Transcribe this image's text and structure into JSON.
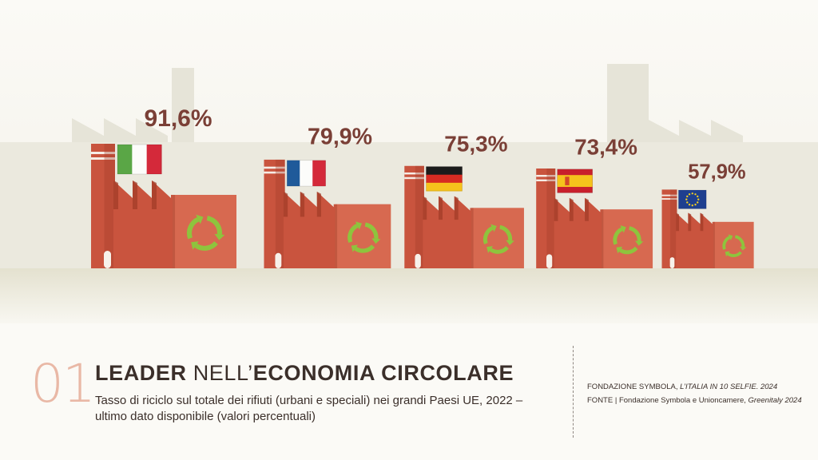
{
  "chart_data": {
    "type": "bar",
    "categories": [
      "Italia",
      "Francia",
      "Germania",
      "Spagna",
      "UE"
    ],
    "values": [
      91.6,
      79.9,
      75.3,
      73.4,
      57.9
    ],
    "value_labels": [
      "91,6%",
      "79,9%",
      "75,3%",
      "73,4%",
      "57,9%"
    ],
    "flags": [
      "italy-flag",
      "france-flag",
      "germany-flag",
      "spain-flag",
      "eu-flag"
    ],
    "unit": "%",
    "colors": {
      "factory": "#c9543e",
      "factory_dark": "#a03b27",
      "factory_light": "#e27a5e",
      "value_text": "#7a3f36",
      "recycle": "#8ec43d",
      "ground": "#e9e6d6",
      "skyline": "#e3e1d4"
    }
  },
  "footer": {
    "number": "01",
    "number_dot": ".",
    "title_part1": "LEADER",
    "title_part2": " NELL’",
    "title_part3": "ECONOMIA CIRCOLARE",
    "subtitle": "Tasso di riciclo sul totale dei rifiuti (urbani e speciali) nei grandi Paesi UE, 2022 – ultimo dato disponibile (valori percentuali)",
    "credit_line1_normal": "FONDAZIONE SYMBOLA, ",
    "credit_line1_italic": "L’ITALIA IN 10 SELFIE. 2024",
    "credit_line2_label": "FONTE",
    "credit_line2_normal": " | Fondazione Symbola e Unioncamere, ",
    "credit_line2_italic": "Greenitaly 2024"
  }
}
